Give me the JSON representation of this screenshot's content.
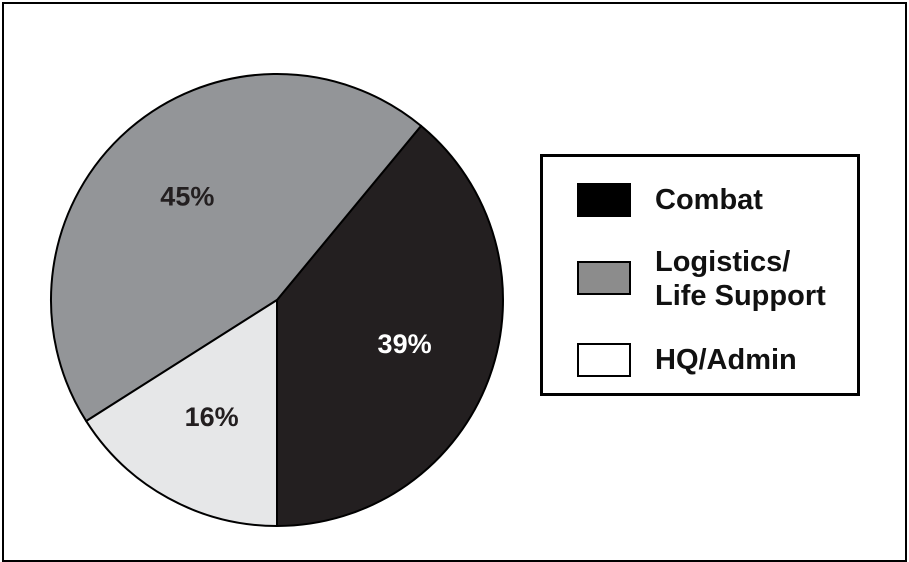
{
  "chart_data": {
    "type": "pie",
    "categories": [
      "Combat",
      "Logistics/\nLife Support",
      "HQ/Admin"
    ],
    "values": [
      39,
      45,
      16
    ],
    "value_labels": [
      "39%",
      "45%",
      "16%"
    ],
    "colors": [
      "#231f20",
      "#939598",
      "#e6e7e8"
    ],
    "label_colors": [
      "#ffffff",
      "#231f20",
      "#231f20"
    ],
    "legend_swatch_colors": [
      "#000000",
      "#8c8c8c",
      "#ffffff"
    ],
    "start_angle_deg": 0,
    "direction": "clockwise",
    "legend_position": "right",
    "title": ""
  }
}
